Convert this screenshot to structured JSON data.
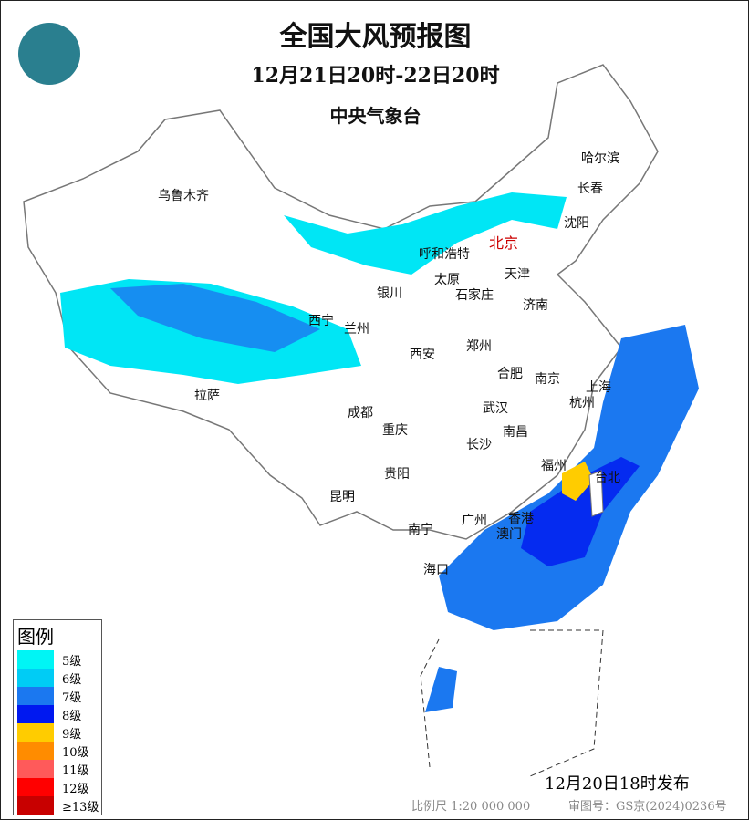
{
  "header": {
    "title": "全国大风预报图",
    "period": "12月21日20时-22日20时",
    "agency": "中央气象台"
  },
  "legend": {
    "title": "图例",
    "items": [
      {
        "label": "5级",
        "color": "#00f5f5"
      },
      {
        "label": "6级",
        "color": "#00ccf5"
      },
      {
        "label": "7级",
        "color": "#1b78f0"
      },
      {
        "label": "8级",
        "color": "#0018f0"
      },
      {
        "label": "9级",
        "color": "#ffcc00"
      },
      {
        "label": "10级",
        "color": "#ff8c00"
      },
      {
        "label": "11级",
        "color": "#ff5a5a"
      },
      {
        "label": "12级",
        "color": "#ff0000"
      },
      {
        "label": "≥13级",
        "color": "#c80000"
      }
    ]
  },
  "cities": [
    "哈尔滨",
    "长春",
    "沈阳",
    "乌鲁木齐",
    "北京",
    "呼和浩特",
    "天津",
    "太原",
    "石家庄",
    "银川",
    "济南",
    "西宁",
    "兰州",
    "郑州",
    "西安",
    "合肥",
    "南京",
    "上海",
    "杭州",
    "拉萨",
    "成都",
    "武汉",
    "重庆",
    "南昌",
    "长沙",
    "福州",
    "台北",
    "贵阳",
    "昆明",
    "广州",
    "香港",
    "澳门",
    "南宁",
    "海口"
  ],
  "footer": {
    "issued": "12月20日18时发布",
    "scale": "比例尺 1:20 000 000",
    "review": "审图号：GS京(2024)0236号"
  }
}
